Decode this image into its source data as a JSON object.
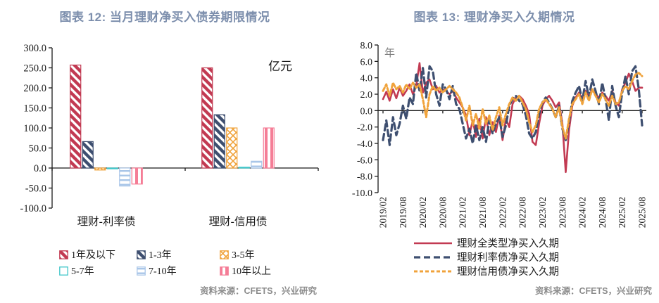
{
  "left_panel": {
    "title": "图表 12: 当月理财净买入债券期限情况",
    "source": "资料来源：CFETS，兴业研究"
  },
  "right_panel": {
    "title": "图表 13: 理财净买入久期情况",
    "source": "资料来源：CFETS，兴业研究"
  },
  "colors": {
    "title": "#7D8FAD",
    "source_text": "#8C8C8C",
    "axis": "#1a1a1a",
    "unit_label_right": "#7f7f7f"
  },
  "chart_data": [
    {
      "type": "bar",
      "title": "图表 12: 当月理财净买入债券期限情况",
      "unit_label": "亿元",
      "categories": [
        "理财-利率债",
        "理财-信用债"
      ],
      "series": [
        {
          "name": "1年及以下",
          "color": "#C23A52",
          "pattern": "diag",
          "values": [
            257,
            250
          ]
        },
        {
          "name": "1-3年",
          "color": "#3E4F70",
          "pattern": "diag",
          "values": [
            66,
            133
          ]
        },
        {
          "name": "3-5年",
          "color": "#F0A33C",
          "pattern": "cross",
          "values": [
            -5,
            100
          ]
        },
        {
          "name": "5-7年",
          "color": "#3FC6C9",
          "pattern": "plain",
          "values": [
            -2,
            2
          ]
        },
        {
          "name": "7-10年",
          "color": "#A9C6E8",
          "pattern": "horiz",
          "values": [
            -45,
            17
          ]
        },
        {
          "name": "10年以上",
          "color": "#F57D96",
          "pattern": "vert",
          "values": [
            -40,
            100
          ]
        }
      ],
      "ylim": [
        -100,
        300
      ],
      "yticks": [
        "300.0",
        "250.0",
        "200.0",
        "150.0",
        "100.0",
        "50.0",
        "0.0",
        "-50.0",
        "-100.0"
      ],
      "legend_rows": [
        [
          "1年及以下",
          "1-3年",
          "3-5年"
        ],
        [
          "5-7年",
          "7-10年",
          "10年以上"
        ]
      ]
    },
    {
      "type": "line",
      "title": "图表 13: 理财净买入久期情况",
      "unit_label": "年",
      "ylim": [
        -10,
        8
      ],
      "yticks": [
        "8.0",
        "6.0",
        "4.0",
        "2.0",
        "0.0",
        "-2.0",
        "-4.0",
        "-6.0",
        "-8.0",
        "-10.0"
      ],
      "x_tick_labels": [
        "2019/02",
        "2019/08",
        "2020/02",
        "2020/08",
        "2021/02",
        "2021/08",
        "2022/02",
        "2022/08",
        "2023/02",
        "2023/08",
        "2024/02",
        "2024/08",
        "2025/02",
        "2025/08"
      ],
      "x_tick_every": 6,
      "x_start": "2019/02",
      "x_end": "2025/08",
      "series": [
        {
          "name": "理财全类型净买入久期",
          "color": "#C23A52",
          "style": "solid",
          "values": [
            1.4,
            2.3,
            1.2,
            2.6,
            1.5,
            2.8,
            1.8,
            2.4,
            3.2,
            2.0,
            3.0,
            5.8,
            2.2,
            3.4,
            3.8,
            2.6,
            3.0,
            2.2,
            2.6,
            2.4,
            2.0,
            2.4,
            1.6,
            1.0,
            0.4,
            -0.6,
            -3.0,
            -1.2,
            -3.2,
            -1.0,
            -3.4,
            -0.8,
            -3.0,
            -1.4,
            -2.6,
            -0.6,
            -3.6,
            -1.0,
            -2.0,
            0.8,
            1.6,
            1.8,
            1.4,
            0.6,
            -0.4,
            -3.8,
            -4.2,
            -1.6,
            0.6,
            1.4,
            1.8,
            1.2,
            0.4,
            1.0,
            -1.6,
            -7.5,
            -2.4,
            0.6,
            1.6,
            2.2,
            1.4,
            2.4,
            1.8,
            2.6,
            2.0,
            1.6,
            2.2,
            1.8,
            1.2,
            2.4,
            1.0,
            0.6,
            2.6,
            3.4,
            4.5,
            3.6,
            2.4,
            2.8,
            2.8
          ]
        },
        {
          "name": "理财利率债净买入久期",
          "color": "#3E4F70",
          "style": "dash-long",
          "values": [
            -3.6,
            -1.2,
            -4.2,
            -0.8,
            -3.0,
            -1.6,
            0.6,
            -1.0,
            1.6,
            0.8,
            4.6,
            2.4,
            5.2,
            1.6,
            5.4,
            4.8,
            2.0,
            0.6,
            3.2,
            2.6,
            1.4,
            3.0,
            0.8,
            0.2,
            -1.6,
            -3.4,
            -2.2,
            -4.0,
            -1.8,
            -3.6,
            -2.0,
            -3.8,
            -1.2,
            -2.8,
            -1.6,
            -0.8,
            -3.2,
            -1.8,
            0.6,
            1.4,
            1.8,
            1.2,
            0.8,
            -0.6,
            -2.8,
            -3.4,
            -2.6,
            -0.4,
            1.0,
            1.6,
            1.0,
            0.2,
            -0.8,
            0.6,
            -2.2,
            -3.6,
            -1.4,
            1.2,
            2.2,
            3.0,
            1.2,
            3.6,
            1.6,
            3.8,
            2.4,
            0.8,
            3.4,
            1.4,
            -1.2,
            3.0,
            0.6,
            -0.8,
            2.2,
            4.2,
            2.0,
            4.8,
            5.4,
            2.6,
            -1.8
          ]
        },
        {
          "name": "理财信用债净买入久期",
          "color": "#F0A33C",
          "style": "dash-short",
          "values": [
            2.4,
            3.2,
            1.8,
            3.4,
            2.6,
            3.0,
            2.2,
            3.2,
            2.6,
            3.4,
            2.8,
            3.2,
            1.4,
            -0.8,
            2.0,
            3.0,
            2.4,
            2.8,
            2.2,
            2.6,
            3.0,
            2.6,
            2.2,
            1.6,
            0.4,
            -1.2,
            0.6,
            -1.8,
            -0.4,
            -2.2,
            0.2,
            -1.6,
            -0.6,
            -2.4,
            -0.8,
            0.4,
            -1.8,
            -0.4,
            0.8,
            1.6,
            1.2,
            1.8,
            1.0,
            0.2,
            -1.4,
            -2.6,
            -1.8,
            0.2,
            1.0,
            1.4,
            0.8,
            0.2,
            -0.8,
            0.4,
            -2.0,
            -3.4,
            -1.0,
            0.8,
            1.4,
            2.0,
            0.8,
            2.2,
            1.2,
            2.6,
            1.8,
            1.0,
            2.0,
            1.4,
            0.6,
            1.8,
            0.8,
            1.0,
            2.4,
            3.0,
            2.6,
            3.6,
            4.4,
            4.6,
            4.2
          ]
        }
      ]
    }
  ]
}
